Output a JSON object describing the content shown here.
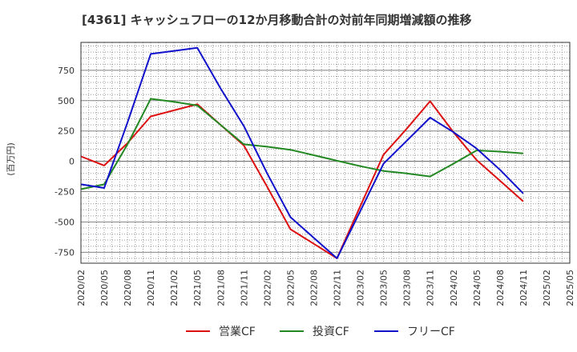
{
  "chart_data": {
    "type": "line",
    "title": "[4361]  キャッシュフローの12か月移動合計の対前年同期増減額の推移",
    "xlabel": "",
    "ylabel": "(百万円)",
    "ylim": [
      -840,
      980
    ],
    "yticks": [
      -750,
      -500,
      -250,
      0,
      250,
      500,
      750
    ],
    "categories": [
      "2020/02",
      "2020/05",
      "2020/08",
      "2020/11",
      "2021/02",
      "2021/05",
      "2021/08",
      "2021/11",
      "2022/02",
      "2022/05",
      "2022/08",
      "2022/11",
      "2023/02",
      "2023/05",
      "2023/08",
      "2023/11",
      "2024/02",
      "2024/05",
      "2024/08",
      "2024/11",
      "2025/02",
      "2025/05"
    ],
    "grid": true,
    "legend_position": "bottom",
    "series": [
      {
        "name": "営業CF",
        "color": "#dd1111",
        "values": [
          40,
          -35,
          150,
          370,
          420,
          470,
          300,
          130,
          -210,
          -560,
          -680,
          -800,
          -370,
          55,
          270,
          495,
          240,
          10,
          -160,
          -330,
          null,
          null
        ]
      },
      {
        "name": "投資CF",
        "color": "#228822",
        "values": [
          -230,
          -190,
          140,
          515,
          490,
          460,
          300,
          140,
          120,
          95,
          50,
          5,
          -40,
          -80,
          -100,
          -125,
          -20,
          90,
          80,
          65,
          null,
          null
        ]
      },
      {
        "name": "フリーCF",
        "color": "#1111cc",
        "values": [
          -190,
          -220,
          320,
          885,
          910,
          935,
          600,
          290,
          -100,
          -460,
          -630,
          -800,
          -410,
          -20,
          170,
          360,
          240,
          105,
          -70,
          -265,
          null,
          null
        ]
      }
    ]
  }
}
